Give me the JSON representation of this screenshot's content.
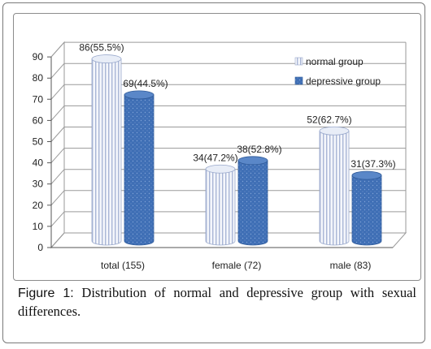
{
  "chart_data": {
    "type": "bar",
    "categories": [
      "total (155)",
      "female (72)",
      "male (83)"
    ],
    "series": [
      {
        "name": "normal group",
        "values": [
          86,
          34,
          52
        ],
        "labels": [
          "86(55.5%)",
          "34(47.2%)",
          "52(62.7%)"
        ]
      },
      {
        "name": "depressive group",
        "values": [
          69,
          38,
          31
        ],
        "labels": [
          "69(44.5%)",
          "38(52.8%)",
          "31(37.3%)"
        ]
      }
    ],
    "yticks": [
      0,
      10,
      20,
      30,
      40,
      50,
      60,
      70,
      80,
      90
    ],
    "ylim": [
      0,
      90
    ],
    "legend_position": "right",
    "bar_shape": "3d-cylinder",
    "grid": true
  },
  "caption": {
    "label": "Figure 1:",
    "text": " Distribution of normal and depressive group with sexual differences."
  },
  "colors": {
    "normal_fill": "#f4f6fb",
    "normal_stripe": "#a9b6d6",
    "depressive_fill": "#3f6fb5",
    "depressive_top": "#5a87c8",
    "grid": "#9a9a9a"
  }
}
